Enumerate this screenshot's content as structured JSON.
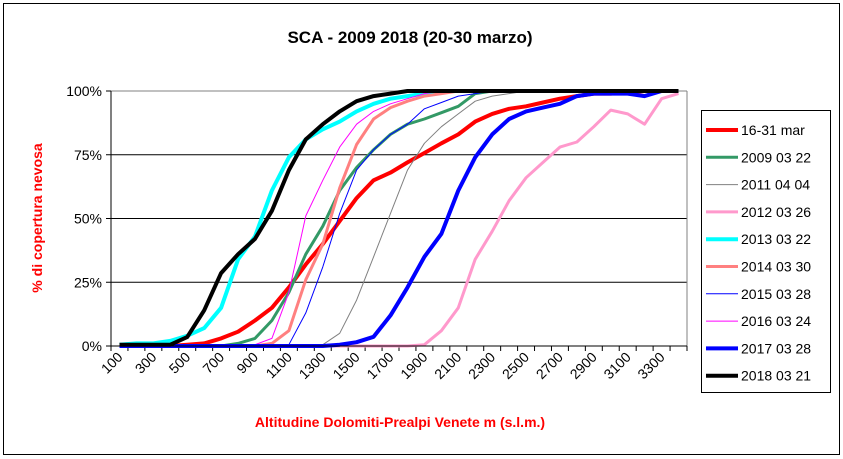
{
  "chart_data": {
    "type": "line",
    "title": "SCA - 2009  2018 (20-30 marzo)",
    "xlabel": "Altitudine Dolomiti-Prealpi Venete m (s.l.m.)",
    "ylabel": "% di copertura nevosa",
    "ylim": [
      0,
      100
    ],
    "yticks": [
      "0%",
      "25%",
      "50%",
      "75%",
      "100%"
    ],
    "xtick_labels": [
      "100",
      "300",
      "500",
      "700",
      "900",
      "1100",
      "1300",
      "1500",
      "1700",
      "1900",
      "2100",
      "2300",
      "2500",
      "2700",
      "2900",
      "3100",
      "3300"
    ],
    "x": [
      100,
      200,
      300,
      400,
      500,
      600,
      700,
      800,
      900,
      1000,
      1100,
      1200,
      1300,
      1400,
      1500,
      1600,
      1700,
      1800,
      1900,
      2000,
      2100,
      2200,
      2300,
      2400,
      2500,
      2600,
      2700,
      2800,
      2900,
      3000,
      3100,
      3200,
      3300,
      3400
    ],
    "grid": "horizontal",
    "legend_position": "right",
    "series": [
      {
        "name": "16-31 mar",
        "color": "#ff0000",
        "width": 4,
        "values": [
          0,
          0,
          0,
          0,
          0.5,
          1,
          3,
          5.6,
          10,
          15,
          23,
          32,
          40,
          49,
          58,
          65,
          68,
          72,
          75.7,
          79.5,
          83,
          88,
          91,
          93,
          94,
          95.5,
          97,
          98,
          99,
          99,
          99.5,
          100,
          100,
          100
        ]
      },
      {
        "name": "2009 03 22",
        "color": "#339966",
        "width": 3,
        "values": [
          0,
          0,
          0,
          0,
          0,
          0,
          0,
          1,
          3,
          10,
          21,
          36,
          47,
          61,
          70,
          77,
          83,
          87,
          89,
          91.5,
          94,
          99,
          100,
          100,
          100,
          100,
          100,
          100,
          100,
          100,
          100,
          100,
          100,
          100
        ]
      },
      {
        "name": "2011 04 04",
        "color": "#808080",
        "width": 1,
        "values": [
          0,
          0,
          0,
          0,
          0,
          0,
          0,
          0,
          0,
          0,
          0,
          0,
          0.5,
          5,
          18,
          35,
          52,
          69,
          79.5,
          86,
          91,
          96,
          98,
          99,
          100,
          100,
          100,
          100,
          100,
          100,
          100,
          100,
          100,
          100
        ]
      },
      {
        "name": "2012 03 26",
        "color": "#ff99cc",
        "width": 3,
        "values": [
          0,
          0,
          0,
          0,
          0,
          0,
          0,
          0,
          0,
          0,
          0,
          0,
          0,
          0,
          0,
          0,
          0,
          0,
          0.5,
          6,
          15,
          34,
          45,
          57,
          66,
          72,
          78,
          80,
          86,
          92.5,
          91,
          87,
          97,
          99
        ]
      },
      {
        "name": "2013 03 22",
        "color": "#00ffff",
        "width": 4,
        "values": [
          0.5,
          1,
          1,
          2,
          4,
          7,
          15,
          34,
          43,
          61,
          74,
          81,
          85,
          88,
          92,
          95,
          97,
          98,
          99,
          100,
          100,
          100,
          100,
          100,
          100,
          100,
          100,
          100,
          100,
          100,
          100,
          100,
          100,
          100
        ]
      },
      {
        "name": "2014 03 30",
        "color": "#ff8080",
        "width": 3,
        "values": [
          0,
          0,
          0,
          0,
          0,
          0,
          0,
          0,
          0,
          1,
          6,
          26,
          40,
          62,
          79,
          89,
          93.5,
          96,
          98,
          99,
          100,
          100,
          100,
          100,
          100,
          100,
          100,
          100,
          100,
          100,
          100,
          100,
          100,
          100
        ]
      },
      {
        "name": "2015 03 28",
        "color": "#0000ff",
        "width": 1,
        "values": [
          0,
          0,
          0,
          0,
          0,
          0,
          0,
          0,
          0,
          0,
          0.5,
          13,
          31,
          52,
          69,
          77,
          83,
          87,
          93,
          95.5,
          98,
          99,
          100,
          100,
          100,
          100,
          100,
          100,
          100,
          100,
          100,
          100,
          100,
          100
        ]
      },
      {
        "name": "2016 03 24",
        "color": "#ff00ff",
        "width": 1,
        "values": [
          0,
          0,
          0,
          0,
          0,
          0,
          0,
          0,
          0.5,
          3,
          21,
          51,
          65,
          78,
          87,
          92,
          95,
          97,
          99,
          100,
          100,
          100,
          100,
          100,
          100,
          100,
          100,
          100,
          100,
          100,
          100,
          100,
          100,
          100
        ]
      },
      {
        "name": "2017 03 28",
        "color": "#0000ff",
        "width": 4,
        "values": [
          0,
          0,
          0,
          0,
          0,
          0,
          0,
          0,
          0,
          0,
          0,
          0,
          0,
          0.5,
          1.5,
          3.6,
          12,
          23,
          35,
          44,
          61,
          74,
          83,
          89,
          92,
          93.5,
          95,
          98,
          99,
          99,
          99,
          98,
          100,
          100
        ]
      },
      {
        "name": "2018 03 21",
        "color": "#000000",
        "width": 4,
        "values": [
          0.5,
          0.5,
          0.5,
          0.5,
          3.5,
          14,
          28.6,
          36,
          42,
          53,
          69,
          81,
          87,
          92,
          96,
          98,
          99,
          100,
          100,
          100,
          100,
          100,
          100,
          100,
          100,
          100,
          100,
          100,
          100,
          100,
          100,
          100,
          100,
          100
        ]
      }
    ]
  }
}
